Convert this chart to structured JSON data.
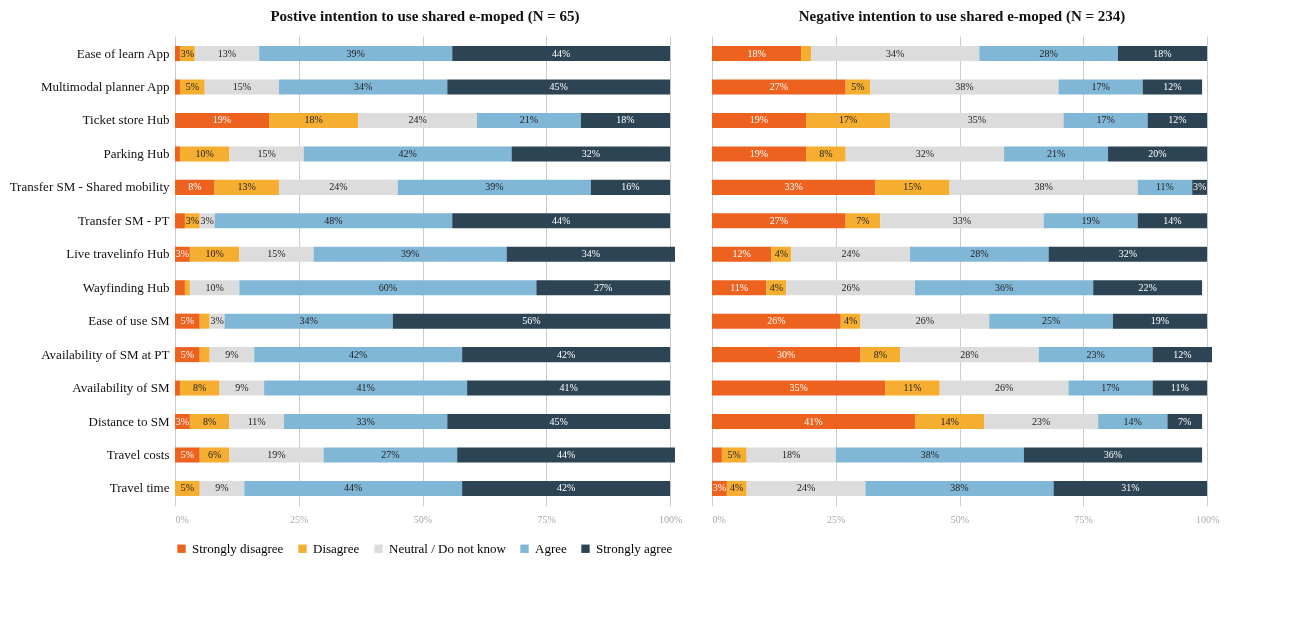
{
  "chart_data": [
    {
      "type": "bar",
      "orientation": "horizontal",
      "stacked": true,
      "title": "Postive intention to use shared e-moped (N = 65)",
      "categories": [
        "Ease of learn App",
        "Multimodal planner App",
        "Ticket store Hub",
        "Parking Hub",
        "Transfer SM - Shared mobility",
        "Transfer SM - PT",
        "Live travelinfo Hub",
        "Wayfinding Hub",
        "Ease of use SM",
        "Availability of SM at PT",
        "Availability of SM",
        "Distance to SM",
        "Travel costs",
        "Travel time"
      ],
      "series": [
        {
          "name": "Strongly disagree",
          "color": "#ee6220",
          "values": [
            1,
            1,
            19,
            1,
            8,
            2,
            3,
            2,
            5,
            5,
            1,
            3,
            5,
            0
          ],
          "value_labels": [
            null,
            null,
            "19%",
            null,
            "8%",
            null,
            "3%",
            null,
            "5%",
            "5%",
            null,
            "3%",
            "5%",
            null
          ]
        },
        {
          "name": "Disagree",
          "color": "#f5ae30",
          "values": [
            3,
            5,
            18,
            10,
            13,
            3,
            10,
            1,
            2,
            2,
            8,
            8,
            6,
            5
          ],
          "value_labels": [
            "3%",
            "5%",
            "18%",
            "10%",
            "13%",
            "3%",
            "10%",
            null,
            null,
            null,
            "8%",
            "8%",
            "6%",
            "5%"
          ]
        },
        {
          "name": "Neutral / Do not know",
          "color": "#dcdcdc",
          "values": [
            13,
            15,
            24,
            15,
            24,
            3,
            15,
            10,
            3,
            9,
            9,
            11,
            19,
            9
          ],
          "value_labels": [
            "13%",
            "15%",
            "24%",
            "15%",
            "24%",
            "3%",
            "15%",
            "10%",
            "3%",
            "9%",
            "9%",
            "11%",
            "19%",
            "9%"
          ]
        },
        {
          "name": "Agree",
          "color": "#80b7d6",
          "values": [
            39,
            34,
            21,
            42,
            39,
            48,
            39,
            60,
            34,
            42,
            41,
            33,
            27,
            44
          ],
          "value_labels": [
            "39%",
            "34%",
            "21%",
            "42%",
            "39%",
            "48%",
            "39%",
            "60%",
            "34%",
            "42%",
            "41%",
            "33%",
            "27%",
            "44%"
          ]
        },
        {
          "name": "Strongly agree",
          "color": "#2d4455",
          "values": [
            44,
            45,
            18,
            32,
            16,
            44,
            34,
            27,
            56,
            42,
            41,
            45,
            44,
            42
          ],
          "value_labels": [
            "44%",
            "45%",
            "18%",
            "32%",
            "16%",
            "44%",
            "34%",
            "27%",
            "56%",
            "42%",
            "41%",
            "45%",
            "44%",
            "42%"
          ]
        }
      ],
      "xlim": [
        0,
        101
      ],
      "xticks": [
        {
          "value": 0,
          "label": "0%"
        },
        {
          "value": 25,
          "label": "25%"
        },
        {
          "value": 50,
          "label": "50%"
        },
        {
          "value": 75,
          "label": "75%"
        },
        {
          "value": 100,
          "label": "100%"
        }
      ],
      "grid": "x",
      "legend": "bottom"
    },
    {
      "type": "bar",
      "orientation": "horizontal",
      "stacked": true,
      "title": "Negative intention to use shared e-moped (N = 234)",
      "categories": [
        null,
        null,
        null,
        null,
        null,
        null,
        null,
        null,
        null,
        null,
        null,
        null,
        null,
        null
      ],
      "series": [
        {
          "name": "Strongly disagree",
          "color": "#ee6220",
          "values": [
            18,
            27,
            19,
            19,
            33,
            27,
            12,
            11,
            26,
            30,
            35,
            41,
            2,
            3
          ],
          "value_labels": [
            "18%",
            "27%",
            "19%",
            "19%",
            "33%",
            "27%",
            "12%",
            "11%",
            "26%",
            "30%",
            "35%",
            "41%",
            null,
            "3%"
          ]
        },
        {
          "name": "Disagree",
          "color": "#f5ae30",
          "values": [
            2,
            5,
            17,
            8,
            15,
            7,
            4,
            4,
            4,
            8,
            11,
            14,
            5,
            4
          ],
          "value_labels": [
            null,
            "5%",
            "17%",
            "8%",
            "15%",
            "7%",
            "4%",
            "4%",
            "4%",
            "8%",
            "11%",
            "14%",
            "5%",
            "4%"
          ]
        },
        {
          "name": "Neutral / Do not know",
          "color": "#dcdcdc",
          "values": [
            34,
            38,
            35,
            32,
            38,
            33,
            24,
            26,
            26,
            28,
            26,
            23,
            18,
            24
          ],
          "value_labels": [
            "34%",
            "38%",
            "35%",
            "32%",
            "38%",
            "33%",
            "24%",
            "26%",
            "26%",
            "28%",
            "26%",
            "23%",
            "18%",
            "24%"
          ]
        },
        {
          "name": "Agree",
          "color": "#80b7d6",
          "values": [
            28,
            17,
            17,
            21,
            11,
            19,
            28,
            36,
            25,
            23,
            17,
            14,
            38,
            38
          ],
          "value_labels": [
            "28%",
            "17%",
            "17%",
            "21%",
            "11%",
            "19%",
            "28%",
            "36%",
            "25%",
            "23%",
            "17%",
            "14%",
            "38%",
            "38%"
          ]
        },
        {
          "name": "Strongly agree",
          "color": "#2d4455",
          "values": [
            18,
            12,
            12,
            20,
            3,
            14,
            32,
            22,
            19,
            12,
            11,
            7,
            36,
            31
          ],
          "value_labels": [
            "18%",
            "12%",
            "12%",
            "20%",
            "3%",
            "14%",
            "32%",
            "22%",
            "19%",
            "12%",
            "11%",
            "7%",
            "36%",
            "31%"
          ]
        }
      ],
      "xlim": [
        0,
        101
      ],
      "xticks": [
        {
          "value": 0,
          "label": "0%"
        },
        {
          "value": 25,
          "label": "25%"
        },
        {
          "value": 50,
          "label": "50%"
        },
        {
          "value": 75,
          "label": "75%"
        },
        {
          "value": 100,
          "label": "100%"
        }
      ],
      "grid": "x",
      "tick_labels": "x"
    }
  ]
}
